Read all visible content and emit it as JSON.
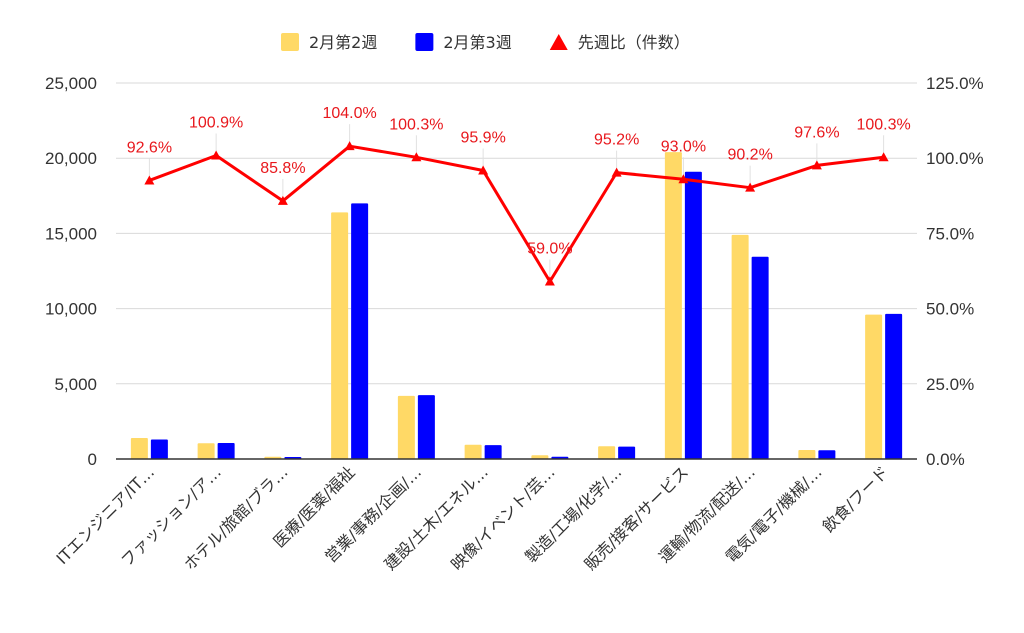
{
  "chart_data": {
    "type": "bar",
    "categories": [
      "ITエンジニア/IT…",
      "ファッション/ア…",
      "ホテル/旅館/ブラ…",
      "医療/医薬/福祉",
      "営業/事務/企画/…",
      "建設/土木/エネル…",
      "映像/イベント/芸…",
      "製造/工場/化学/…",
      "販売/接客/サービス",
      "運輸/物流/配送/…",
      "電気/電子/機械/…",
      "飲食/フード"
    ],
    "series": [
      {
        "name": "2月第2週",
        "type": "bar",
        "axis": "left",
        "color": "#ffd966",
        "values": [
          1400,
          1050,
          150,
          16400,
          4200,
          950,
          250,
          850,
          20400,
          14900,
          600,
          9600
        ]
      },
      {
        "name": "2月第3週",
        "type": "bar",
        "axis": "left",
        "color": "#0000ff",
        "values": [
          1300,
          1060,
          130,
          17000,
          4250,
          920,
          150,
          820,
          19100,
          13450,
          580,
          9650
        ]
      },
      {
        "name": "先週比（件数）",
        "type": "line",
        "axis": "right",
        "color": "#ff0000",
        "values": [
          92.6,
          100.9,
          85.8,
          104.0,
          100.3,
          95.9,
          59.0,
          95.2,
          93.0,
          90.2,
          97.6,
          100.3
        ],
        "labels": [
          "92.6%",
          "100.9%",
          "85.8%",
          "104.0%",
          "100.3%",
          "95.9%",
          "59.0%",
          "95.2%",
          "93.0%",
          "90.2%",
          "97.6%",
          "100.3%"
        ]
      }
    ],
    "y_left": {
      "min": 0,
      "max": 25000,
      "ticks": [
        "0",
        "5,000",
        "10,000",
        "15,000",
        "20,000",
        "25,000"
      ]
    },
    "y_right": {
      "min": 0,
      "max": 125,
      "ticks": [
        "0.0%",
        "25.0%",
        "50.0%",
        "75.0%",
        "100.0%",
        "125.0%"
      ]
    },
    "grid": true,
    "legend": "top-center"
  }
}
